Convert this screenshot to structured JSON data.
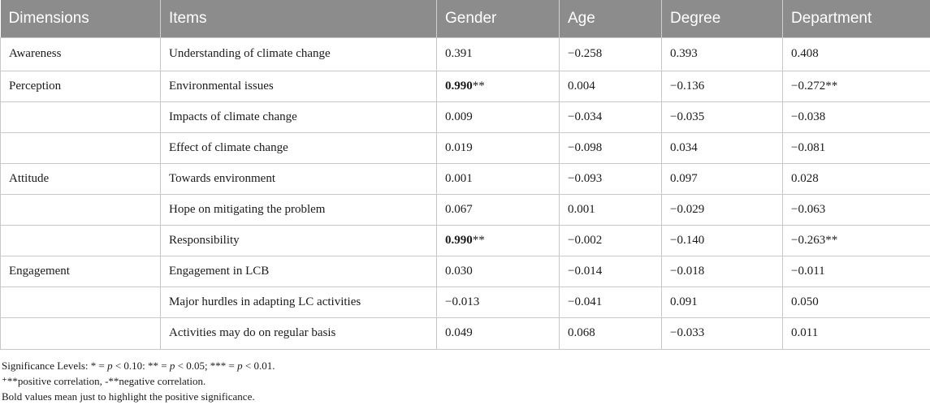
{
  "headers": [
    "Dimensions",
    "Items",
    "Gender",
    "Age",
    "Degree",
    "Department"
  ],
  "rows": [
    {
      "dimension": "Awareness",
      "item": "Understanding of climate change",
      "gender": "0.391",
      "gender_sig": "",
      "gender_bold": false,
      "age": "−0.258",
      "degree": "0.393",
      "department": "0.408"
    },
    {
      "dimension": "Perception",
      "item": "Environmental issues",
      "gender": "0.990",
      "gender_sig": "**",
      "gender_bold": true,
      "age": "0.004",
      "degree": "−0.136",
      "department": "−0.272**"
    },
    {
      "dimension": "",
      "item": "Impacts of climate change",
      "gender": "0.009",
      "gender_sig": "",
      "gender_bold": false,
      "age": "−0.034",
      "degree": "−0.035",
      "department": "−0.038"
    },
    {
      "dimension": "",
      "item": "Effect of climate change",
      "gender": "0.019",
      "gender_sig": "",
      "gender_bold": false,
      "age": "−0.098",
      "degree": "0.034",
      "department": "−0.081"
    },
    {
      "dimension": "Attitude",
      "item": "Towards environment",
      "gender": "0.001",
      "gender_sig": "",
      "gender_bold": false,
      "age": "−0.093",
      "degree": "0.097",
      "department": "0.028"
    },
    {
      "dimension": "",
      "item": "Hope on mitigating the problem",
      "gender": "0.067",
      "gender_sig": "",
      "gender_bold": false,
      "age": "0.001",
      "degree": "−0.029",
      "department": "−0.063"
    },
    {
      "dimension": "",
      "item": "Responsibility",
      "gender": "0.990",
      "gender_sig": "**",
      "gender_bold": true,
      "age": "−0.002",
      "degree": "−0.140",
      "department": "−0.263**"
    },
    {
      "dimension": "Engagement",
      "item": "Engagement in LCB",
      "gender": "0.030",
      "gender_sig": "",
      "gender_bold": false,
      "age": "−0.014",
      "degree": "−0.018",
      "department": "−0.011"
    },
    {
      "dimension": "",
      "item": "Major hurdles in adapting LC activities",
      "gender": "−0.013",
      "gender_sig": "",
      "gender_bold": false,
      "age": "−0.041",
      "degree": "0.091",
      "department": "0.050"
    },
    {
      "dimension": "",
      "item": "Activities may do on regular basis",
      "gender": "0.049",
      "gender_sig": "",
      "gender_bold": false,
      "age": "0.068",
      "degree": "−0.033",
      "department": "0.011"
    }
  ],
  "footnotes": {
    "significance": {
      "prefix": "Significance Levels: * = ",
      "p1": "p",
      "lt1": " < 0.10: ** = ",
      "p2": "p",
      "lt2": " < 0.05; *** = ",
      "p3": "p",
      "lt3": " < 0.01."
    },
    "correlation": "⁺**positive correlation, -**negative correlation.",
    "bold_note": "Bold values mean just to highlight the positive significance."
  }
}
